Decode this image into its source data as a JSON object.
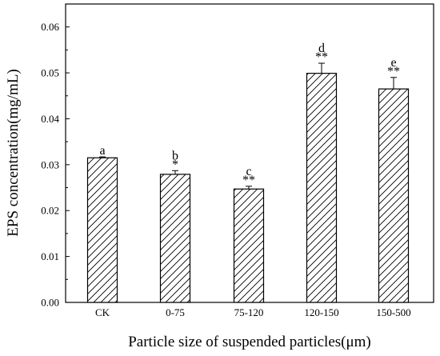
{
  "chart_data": {
    "type": "bar",
    "title": "",
    "xlabel": "Particle size of suspended particles(μm)",
    "ylabel": "EPS concentration(mg/mL)",
    "categories": [
      "CK",
      "0-75",
      "75-120",
      "120-150",
      "150-500"
    ],
    "values": [
      0.0315,
      0.0279,
      0.0247,
      0.0499,
      0.0465
    ],
    "errors": [
      0.0002,
      0.0008,
      0.0006,
      0.0022,
      0.0025
    ],
    "letters": [
      "a",
      "b",
      "c",
      "d",
      "e"
    ],
    "stars": [
      "",
      "*",
      "**",
      "**",
      "**"
    ],
    "ylim": [
      0,
      0.065
    ],
    "yticks": [
      "0.00",
      "0.01",
      "0.02",
      "0.03",
      "0.04",
      "0.05",
      "0.06"
    ],
    "bar_fill": "hatched",
    "grid": false
  }
}
